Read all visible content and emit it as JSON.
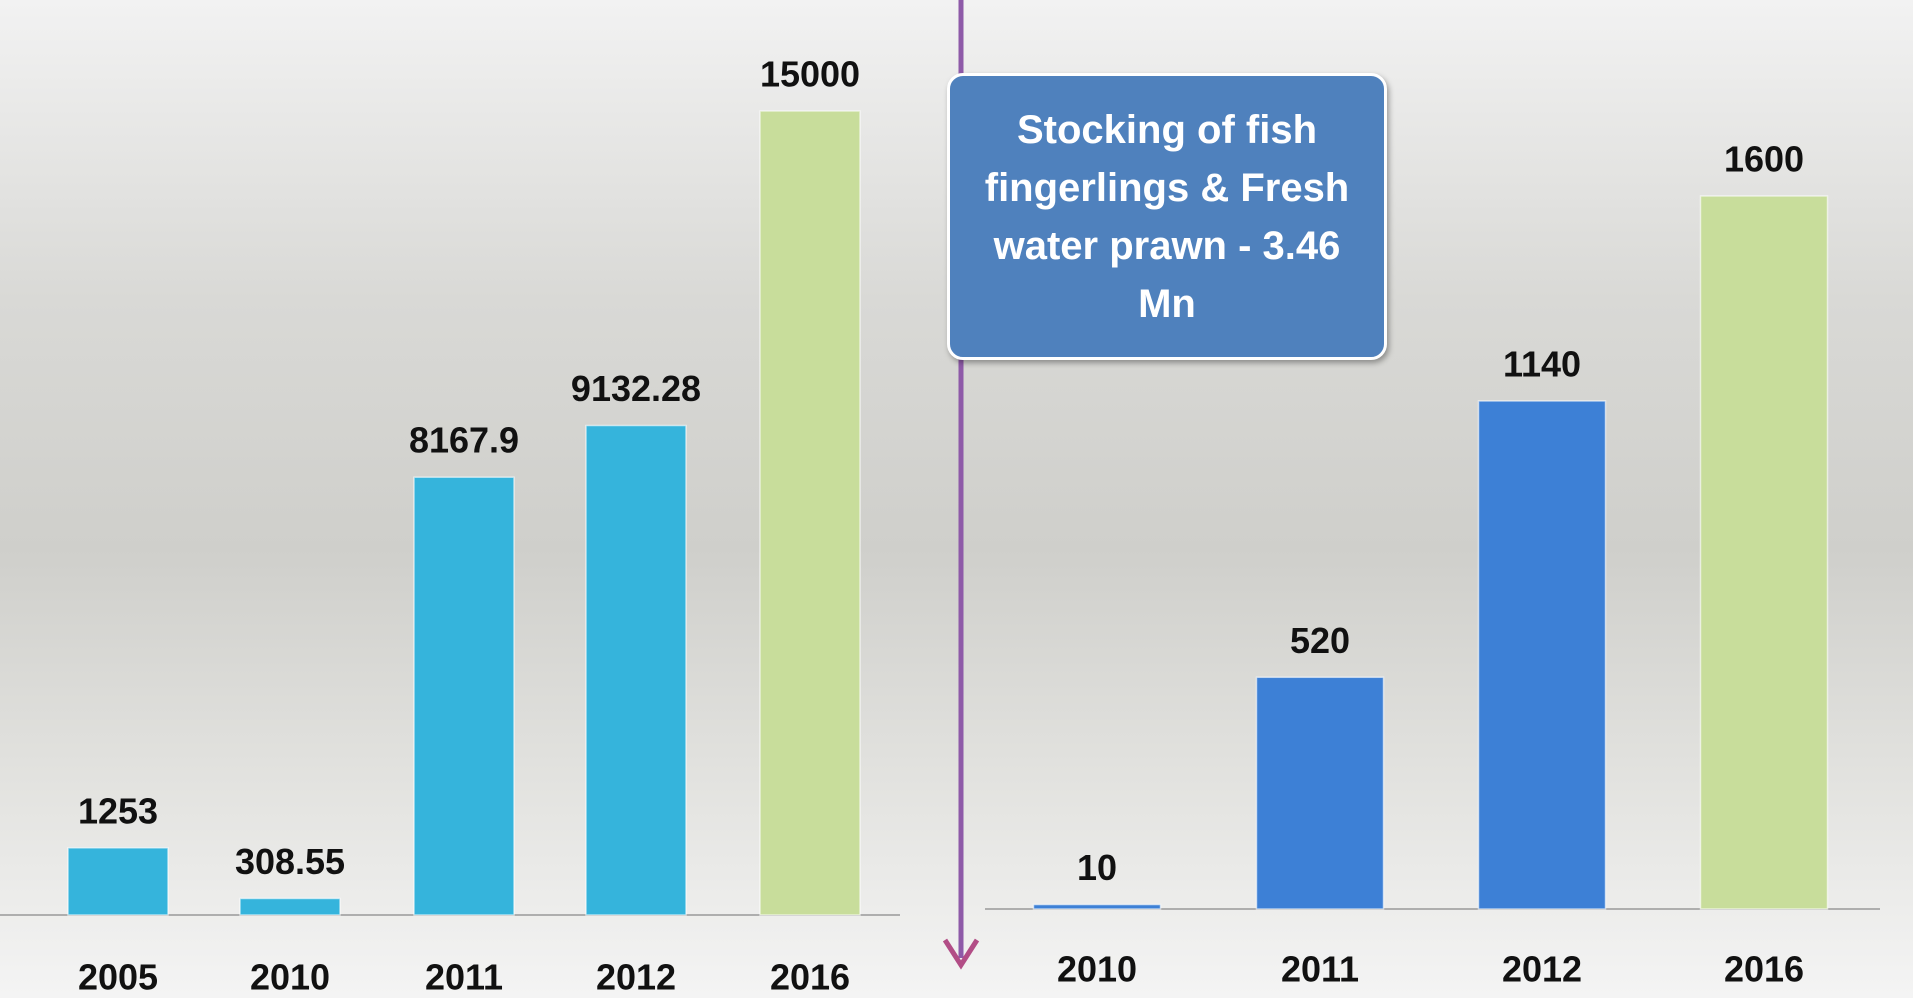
{
  "chart_data": [
    {
      "type": "bar",
      "categories": [
        "2005",
        "2010",
        "2011",
        "2012",
        "2016"
      ],
      "values": [
        1253,
        308.55,
        8167.9,
        9132.28,
        15000
      ],
      "colors": [
        "#35b4dc",
        "#35b4dc",
        "#35b4dc",
        "#35b4dc",
        "#c8dd9b"
      ]
    },
    {
      "type": "bar",
      "categories": [
        "2010",
        "2011",
        "2012",
        "2016"
      ],
      "values": [
        10,
        520,
        1140,
        1600
      ],
      "colors": [
        "#3d80d6",
        "#3d80d6",
        "#3d80d6",
        "#c8dd9b"
      ],
      "annotation": "Stocking of fish fingerlings & Fresh water prawn - 3.46 Mn"
    }
  ]
}
